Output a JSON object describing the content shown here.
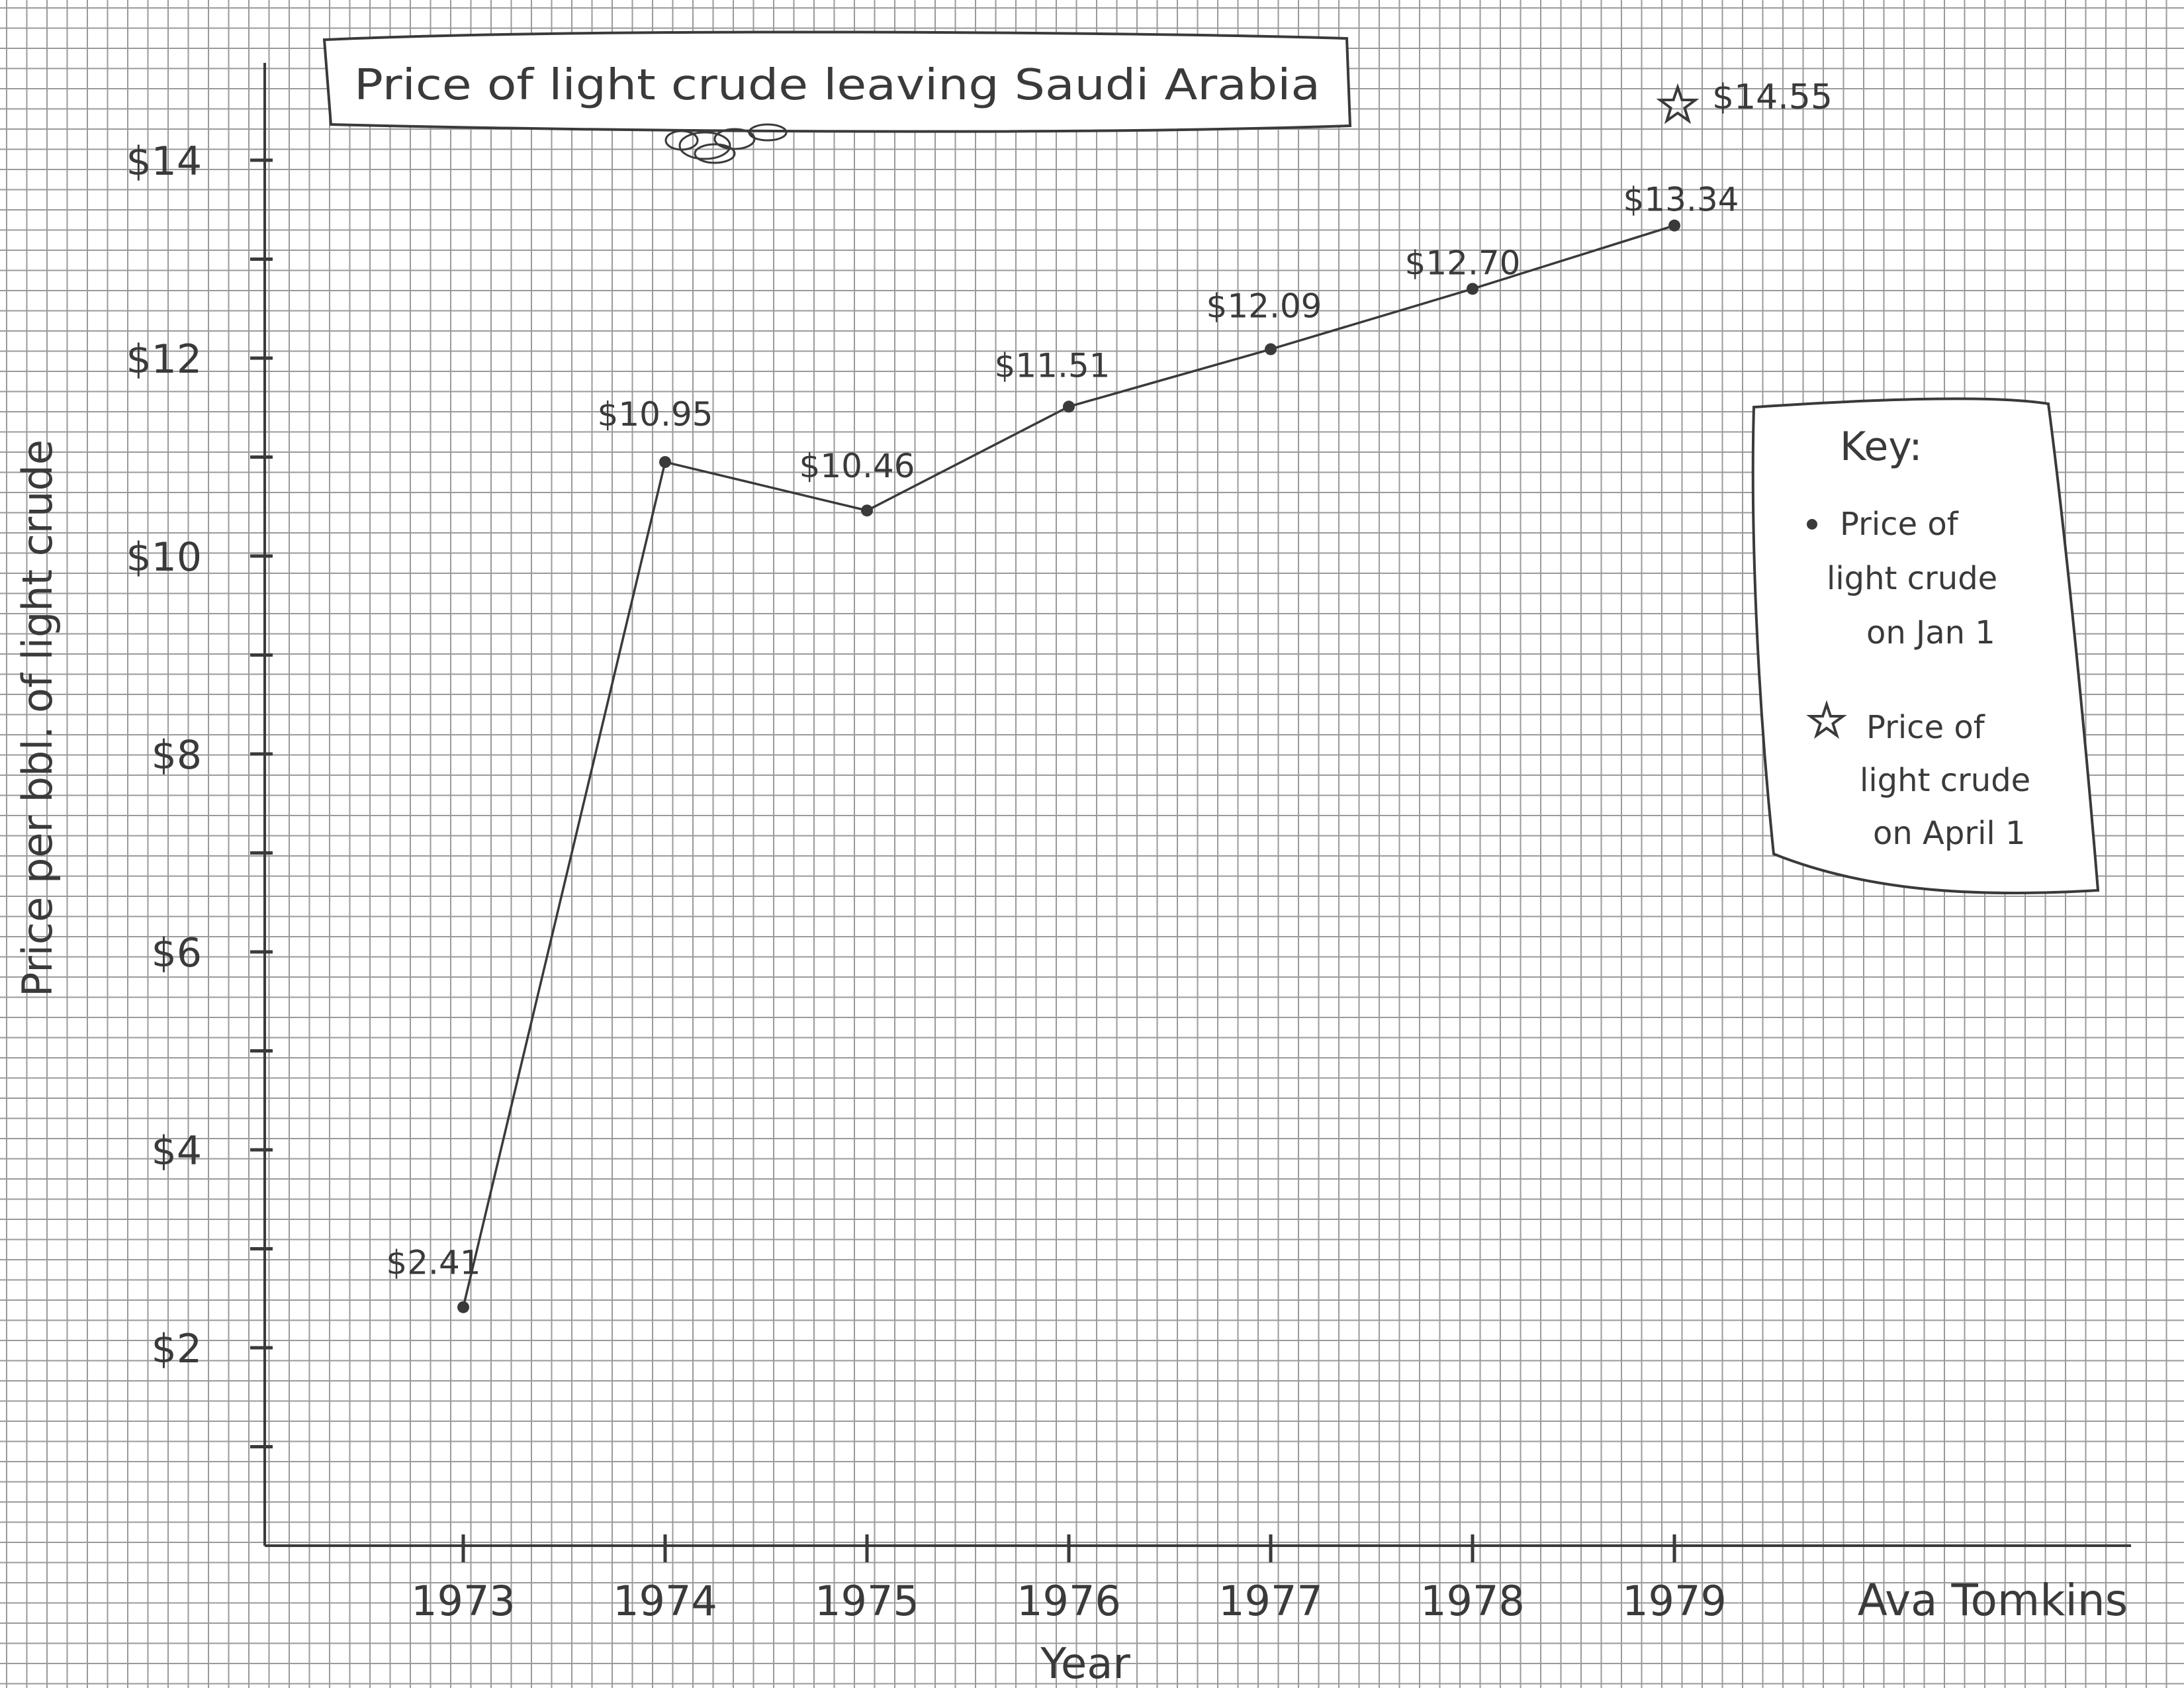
{
  "chart_data": {
    "type": "line",
    "title": "Price of light crude leaving Saudi Arabia",
    "xlabel": "Year",
    "ylabel": "Price per bbl. of light crude",
    "categories": [
      "1973",
      "1974",
      "1975",
      "1976",
      "1977",
      "1978",
      "1979"
    ],
    "series": [
      {
        "name": "Price of light crude on Jan 1",
        "marker": "dot",
        "values": [
          2.41,
          10.95,
          10.46,
          11.51,
          12.09,
          12.7,
          13.34
        ],
        "labels": [
          "$2.41",
          "$10.95",
          "$10.46",
          "$11.51",
          "$12.09",
          "$12.70",
          "$13.34"
        ]
      },
      {
        "name": "Price of light crude on April 1",
        "marker": "star",
        "points": [
          {
            "x": "1979",
            "y": 14.55,
            "label": "$14.55"
          }
        ]
      }
    ],
    "yticks": [
      2,
      4,
      6,
      8,
      10,
      12,
      14
    ],
    "ytick_labels": [
      "$2",
      "$4",
      "$6",
      "$8",
      "$10",
      "$12",
      "$14"
    ],
    "ylim": [
      0,
      14.5
    ],
    "grid": true,
    "legend": {
      "title": "Key:",
      "placement": "right",
      "entries": [
        "Price of light crude on Jan 1",
        "Price of light crude on April 1"
      ]
    }
  },
  "signature": "Ava Tomkins",
  "colors": {
    "grid": "#9a9a9a",
    "ink": "#3a3a3a",
    "paper": "#ffffff"
  }
}
